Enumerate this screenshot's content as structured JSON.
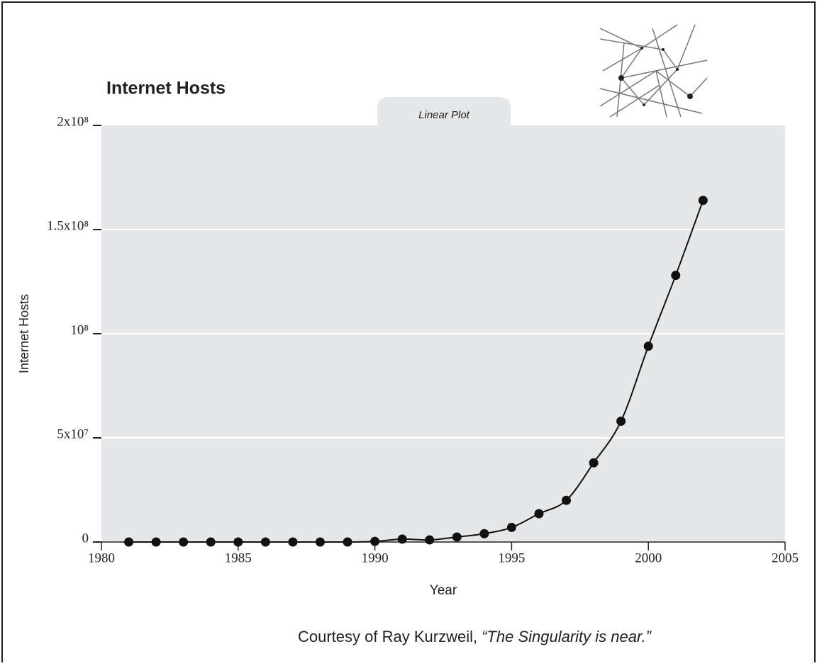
{
  "chart_data": {
    "type": "line",
    "title": "Internet Hosts",
    "subtitle": "Linear Plot",
    "x_label": "Year",
    "y_label": "Internet Hosts",
    "source": "Courtesy of Ray Kurzweil,",
    "source_title": "“The Singularity is near.”",
    "x": [
      1981,
      1982,
      1983,
      1984,
      1985,
      1986,
      1987,
      1988,
      1989,
      1990,
      1991,
      1992,
      1993,
      1994,
      1995,
      1996,
      1997,
      1998,
      1999,
      2000,
      2001,
      2002
    ],
    "series": [
      {
        "name": "Internet Hosts",
        "color": "#111111",
        "values": [
          0,
          0,
          0,
          0,
          0,
          0,
          0,
          0,
          0,
          300000,
          1400000,
          1000000,
          2400000,
          4000000,
          7000000,
          13600000,
          20000000,
          38000000,
          58000000,
          94000000,
          128000000,
          164000000
        ]
      }
    ],
    "xlim": [
      1980,
      2005
    ],
    "xticks": [
      1980,
      1985,
      1990,
      1995,
      2000,
      2005
    ],
    "ylim": [
      0,
      200000000
    ],
    "yticks": [
      {
        "value": 0,
        "label": "0"
      },
      {
        "value": 50000000,
        "label": "5x10⁷"
      },
      {
        "value": 100000000,
        "label": "10⁸"
      },
      {
        "value": 150000000,
        "label": "1.5x10⁸"
      },
      {
        "value": 200000000,
        "label": "2x10⁸"
      }
    ],
    "grid": true
  }
}
